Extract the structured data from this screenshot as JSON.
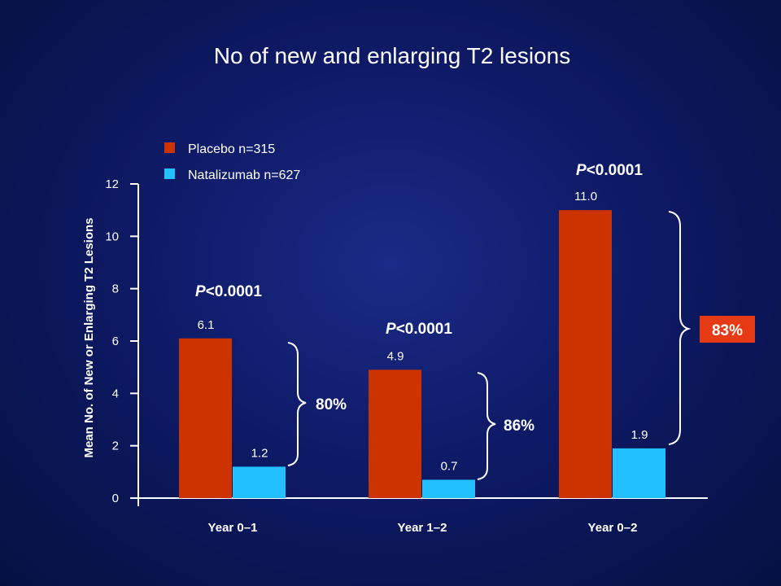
{
  "colors": {
    "placebo": "#cc3300",
    "natalizumab": "#22c0ff",
    "axis": "#ffffff",
    "highlight": "#e63a14"
  },
  "chart_data": {
    "type": "bar",
    "title": "No of new and enlarging T2 lesions",
    "ylabel": "Mean No. of New or Enlarging T2 Lesions",
    "ylim": [
      0,
      12
    ],
    "yticks": [
      0,
      2,
      4,
      6,
      8,
      10,
      12
    ],
    "categories": [
      "Year 0–1",
      "Year 1–2",
      "Year 0–2"
    ],
    "series": [
      {
        "name": "Placebo n=315",
        "color": "#cc3300",
        "values": [
          6.1,
          4.9,
          11.0
        ],
        "labels": [
          "6.1",
          "4.9",
          "11.0"
        ]
      },
      {
        "name": "Natalizumab n=627",
        "color": "#22c0ff",
        "values": [
          1.2,
          0.7,
          1.9
        ],
        "labels": [
          "1.2",
          "0.7",
          "1.9"
        ]
      }
    ],
    "annotations": {
      "p_values": [
        "P<0.0001",
        "P<0.0001",
        "P<0.0001"
      ],
      "reductions": [
        "80%",
        "86%",
        "83%"
      ],
      "highlighted_reduction": "83%"
    },
    "legend": "top-left",
    "grid": false
  }
}
